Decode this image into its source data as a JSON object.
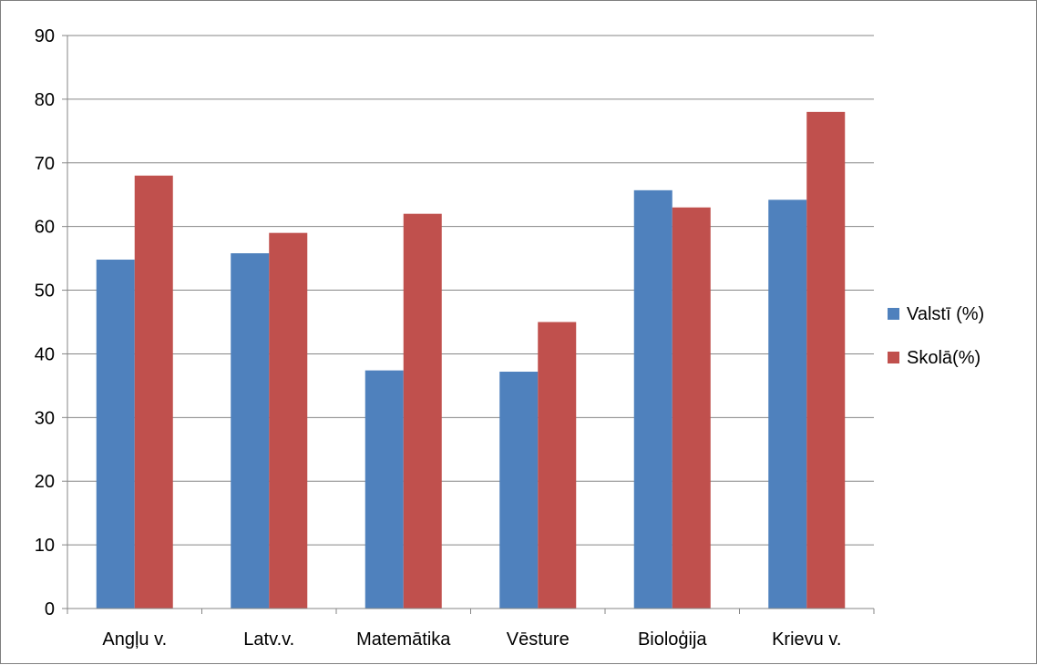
{
  "chart_data": {
    "type": "bar",
    "categories": [
      "Angļu v.",
      "Latv.v.",
      "Matemātika",
      "Vēsture",
      "Bioloģija",
      "Krievu v."
    ],
    "series": [
      {
        "name": "Valstī (%)",
        "values": [
          54.8,
          55.8,
          37.4,
          37.2,
          65.7,
          64.2
        ],
        "color": "#4f81bd"
      },
      {
        "name": "Skolā(%)",
        "values": [
          68,
          59,
          62,
          45,
          63,
          78
        ],
        "color": "#c0504d"
      }
    ],
    "ylim": [
      0,
      90
    ],
    "yticks": [
      "0",
      "10",
      "20",
      "30",
      "40",
      "50",
      "60",
      "70",
      "80",
      "90"
    ],
    "grid": true,
    "legend_position": "right"
  }
}
